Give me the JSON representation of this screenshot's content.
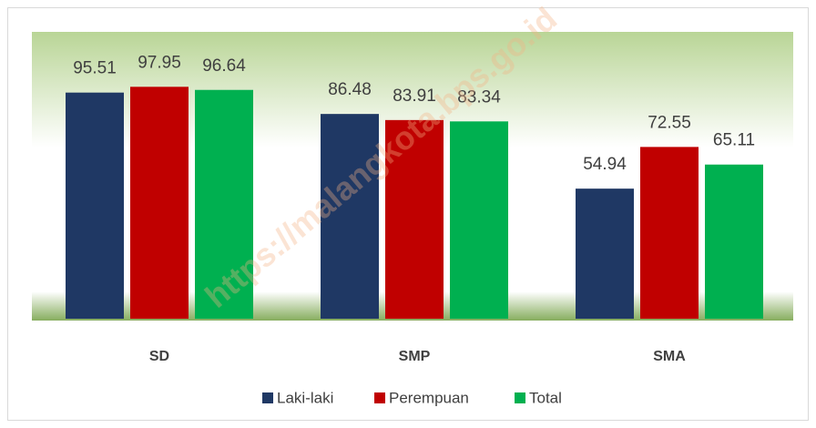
{
  "chart_data": {
    "type": "bar",
    "categories": [
      "SD",
      "SMP",
      "SMA"
    ],
    "series": [
      {
        "name": "Laki-laki",
        "color": "#1f3864",
        "values": [
          95.51,
          86.48,
          54.94
        ]
      },
      {
        "name": "Perempuan",
        "color": "#c00000",
        "values": [
          97.95,
          83.91,
          72.55
        ]
      },
      {
        "name": "Total",
        "color": "#00b050",
        "values": [
          96.64,
          83.34,
          65.11
        ]
      }
    ],
    "ylim": [
      0,
      120
    ],
    "legend": "bottom",
    "watermark": "https://malangkota.bps.go.id"
  }
}
